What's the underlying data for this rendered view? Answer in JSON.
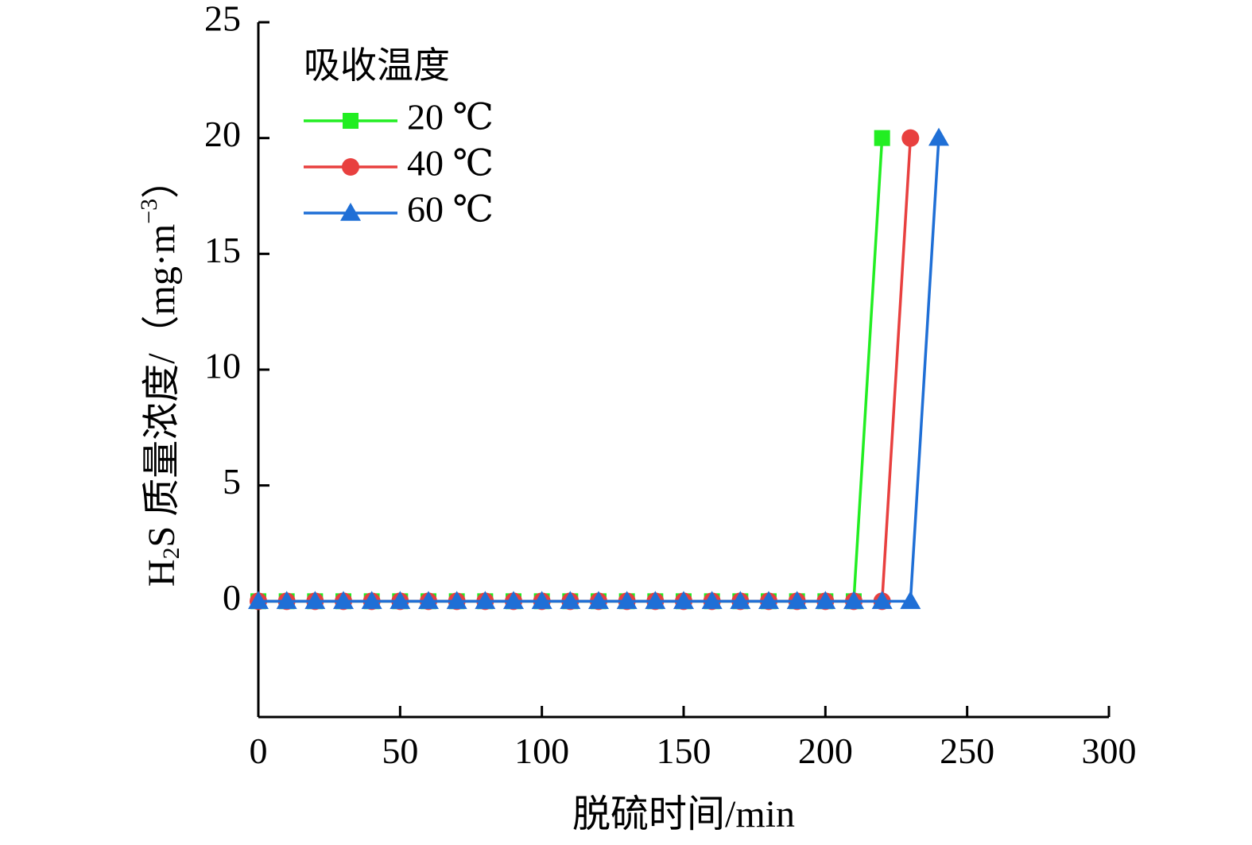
{
  "chart_data": {
    "type": "line",
    "xlabel": "脱硫时间/min",
    "ylabel_parts": [
      "H",
      "2",
      "S 质量浓度/（mg·m",
      "−3",
      "）"
    ],
    "xlim": [
      0,
      300
    ],
    "ylim": [
      -5,
      25
    ],
    "xticks": [
      "0",
      "50",
      "100",
      "150",
      "200",
      "250",
      "300"
    ],
    "yticks": [
      "0",
      "5",
      "10",
      "15",
      "20",
      "25"
    ],
    "grid": false,
    "legend": {
      "title": "吸收温度",
      "position": "top-left"
    },
    "series": [
      {
        "name": "20 ℃",
        "color": "#22ee22",
        "marker": "square",
        "x": [
          0,
          10,
          20,
          30,
          40,
          50,
          60,
          70,
          80,
          90,
          100,
          110,
          120,
          130,
          140,
          150,
          160,
          170,
          180,
          190,
          200,
          210,
          220
        ],
        "y": [
          0,
          0,
          0,
          0,
          0,
          0,
          0,
          0,
          0,
          0,
          0,
          0,
          0,
          0,
          0,
          0,
          0,
          0,
          0,
          0,
          0,
          0,
          20
        ]
      },
      {
        "name": "40 ℃",
        "color": "#e8403f",
        "marker": "circle",
        "x": [
          0,
          10,
          20,
          30,
          40,
          50,
          60,
          70,
          80,
          90,
          100,
          110,
          120,
          130,
          140,
          150,
          160,
          170,
          180,
          190,
          200,
          210,
          220,
          230
        ],
        "y": [
          0,
          0,
          0,
          0,
          0,
          0,
          0,
          0,
          0,
          0,
          0,
          0,
          0,
          0,
          0,
          0,
          0,
          0,
          0,
          0,
          0,
          0,
          0,
          20
        ]
      },
      {
        "name": "60 ℃",
        "color": "#1f6fd6",
        "marker": "triangle",
        "x": [
          0,
          10,
          20,
          30,
          40,
          50,
          60,
          70,
          80,
          90,
          100,
          110,
          120,
          130,
          140,
          150,
          160,
          170,
          180,
          190,
          200,
          210,
          220,
          230,
          240
        ],
        "y": [
          0,
          0,
          0,
          0,
          0,
          0,
          0,
          0,
          0,
          0,
          0,
          0,
          0,
          0,
          0,
          0,
          0,
          0,
          0,
          0,
          0,
          0,
          0,
          0,
          20
        ]
      }
    ]
  }
}
